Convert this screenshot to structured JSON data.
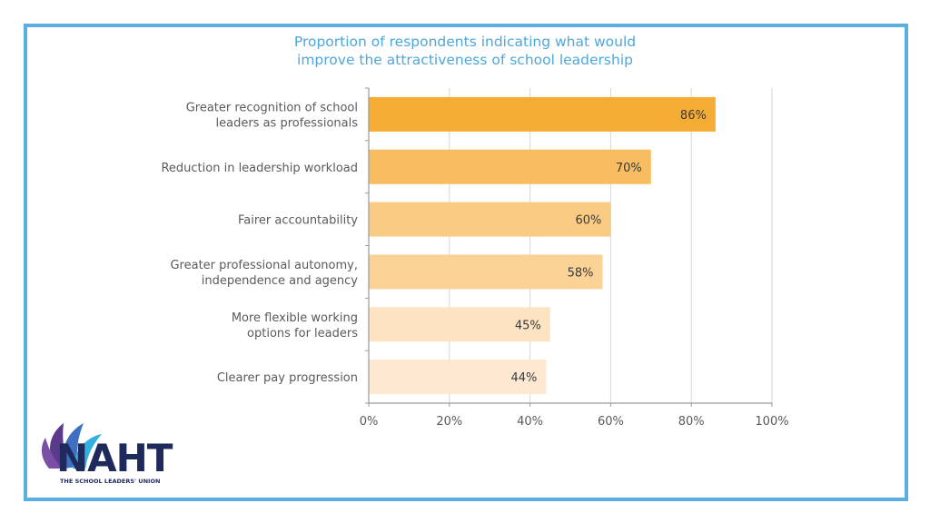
{
  "chart_data": {
    "type": "bar",
    "orientation": "horizontal",
    "title_lines": [
      "Proportion of respondents indicating what would",
      "improve the attractiveness of school leadership"
    ],
    "categories": [
      [
        "Greater recognition of school",
        "leaders as professionals"
      ],
      [
        "Reduction in leadership workload"
      ],
      [
        "Fairer accountability"
      ],
      [
        "Greater professional autonomy,",
        "independence and agency"
      ],
      [
        "More flexible working",
        "options for leaders"
      ],
      [
        "Clearer pay progression"
      ]
    ],
    "values": [
      86,
      70,
      60,
      58,
      45,
      44
    ],
    "value_labels": [
      "86%",
      "70%",
      "60%",
      "58%",
      "45%",
      "44%"
    ],
    "bar_colors": [
      "#f5ac35",
      "#f7bd60",
      "#f9cb83",
      "#fad295",
      "#fde3c2",
      "#fde9d2"
    ],
    "xlim": [
      0,
      100
    ],
    "xticks": [
      0,
      20,
      40,
      60,
      80,
      100
    ],
    "xtick_labels": [
      "0%",
      "20%",
      "40%",
      "60%",
      "80%",
      "100%"
    ],
    "grid": true
  },
  "logo": {
    "word": "NAHT",
    "tagline": "THE SCHOOL LEADERS' UNION"
  },
  "colors": {
    "frame": "#5aaee0",
    "title": "#4fa7da",
    "axis_text": "#5a5a5a",
    "grid": "#d6d6d6",
    "logo_navy": "#1f2a5c"
  }
}
